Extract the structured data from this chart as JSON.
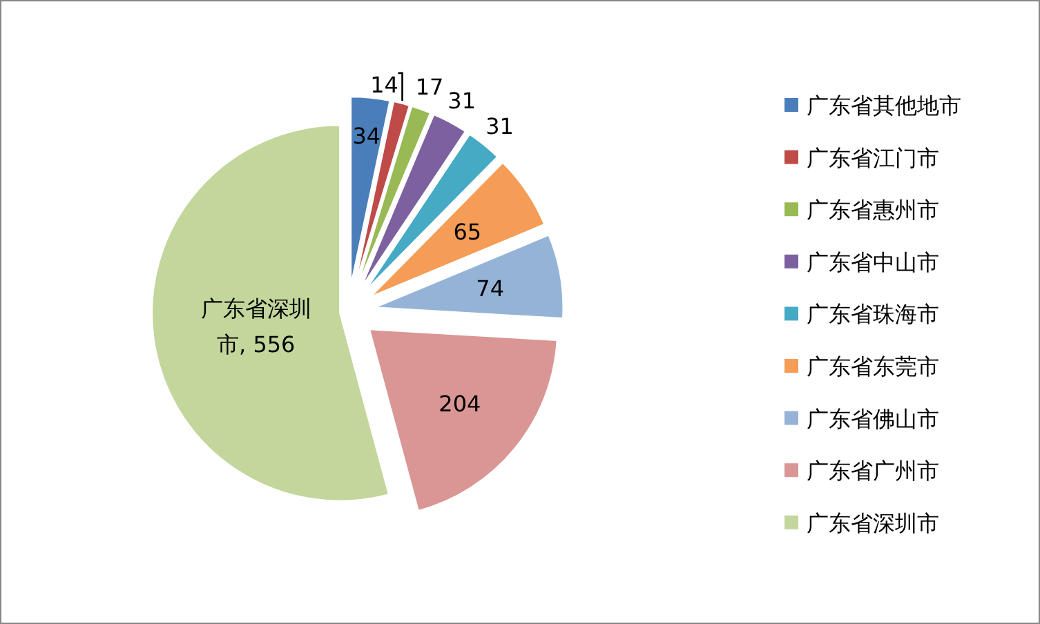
{
  "chart_data": {
    "type": "pie",
    "categories": [
      "广东省其他地市",
      "广东省江门市",
      "广东省惠州市",
      "广东省中山市",
      "广东省珠海市",
      "广东省东莞市",
      "广东省佛山市",
      "广东省广州市",
      "广东省深圳市"
    ],
    "values": [
      34,
      14,
      17,
      31,
      31,
      65,
      74,
      204,
      556
    ],
    "colors": [
      "#4a7ebb",
      "#be4b48",
      "#98b954",
      "#7d60a0",
      "#46aac5",
      "#f59d56",
      "#95b3d7",
      "#d99694",
      "#c3d69b"
    ],
    "value_labels": [
      "34",
      "14",
      "17",
      "31",
      "31",
      "65",
      "74",
      "204",
      "广东省深圳市, 556"
    ],
    "legend": "right"
  }
}
